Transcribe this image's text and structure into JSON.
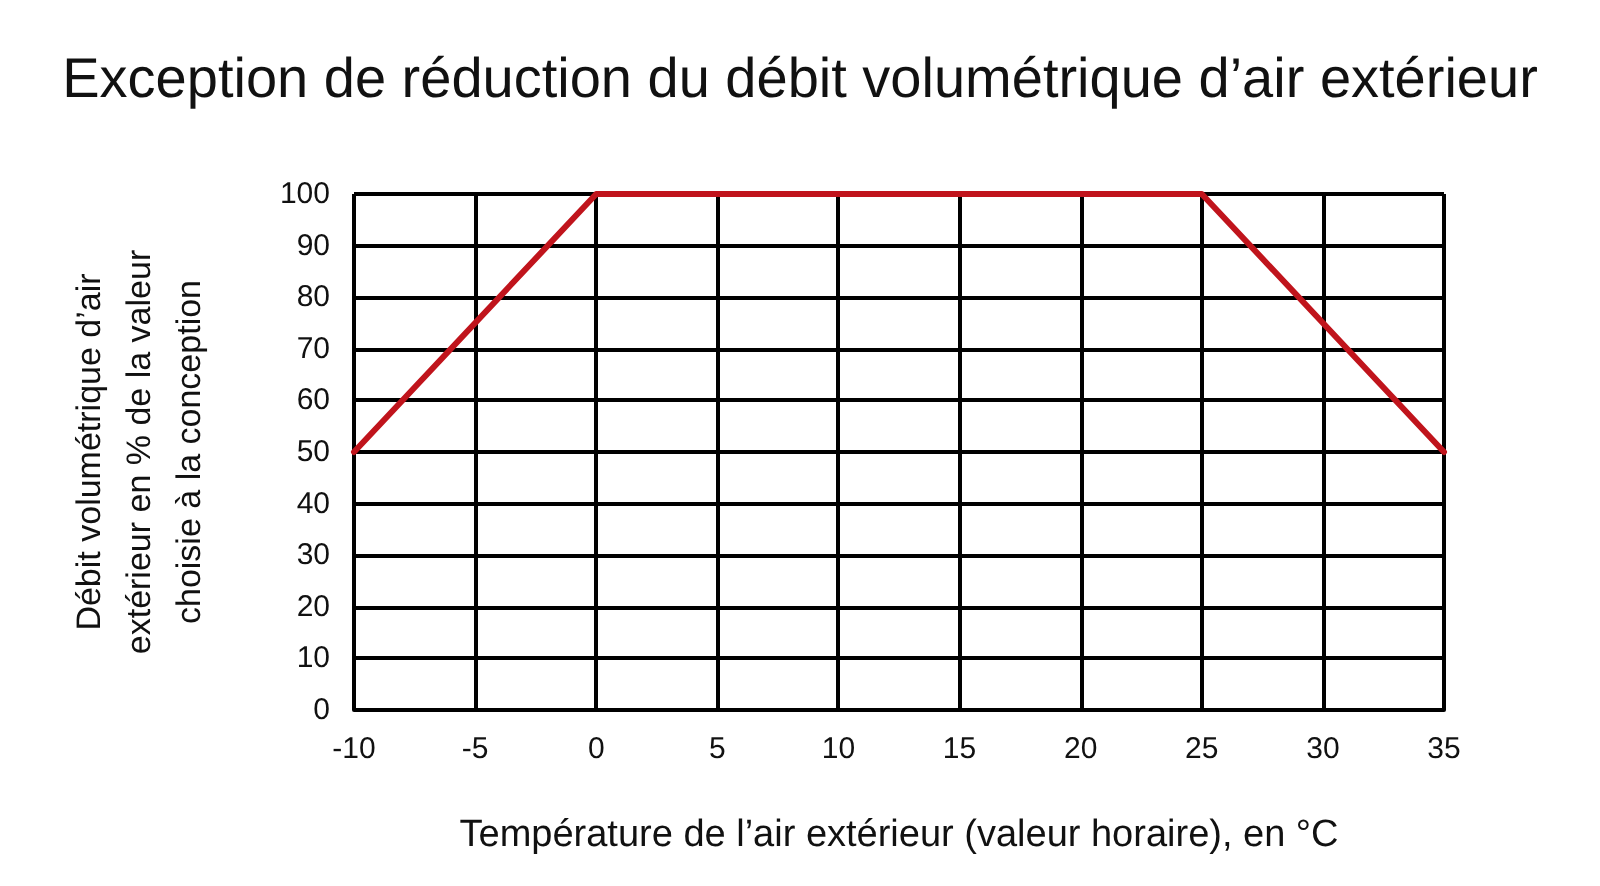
{
  "chart_data": {
    "type": "line",
    "title": "Exception de réduction du débit volumétrique d’air extérieur",
    "xlabel": "Température de l’air extérieur (valeur horaire), en °C",
    "ylabel": "Débit volumétrique d’air\nextérieur en % de la valeur\nchoisie à la conception",
    "x": [
      -10,
      0,
      25,
      35
    ],
    "values": [
      50,
      100,
      100,
      50
    ],
    "color": "#c0141c",
    "xlim": [
      -10,
      35
    ],
    "ylim": [
      0,
      100
    ],
    "xticks": [
      -10,
      -5,
      0,
      5,
      10,
      15,
      20,
      25,
      30,
      35
    ],
    "yticks": [
      0,
      10,
      20,
      30,
      40,
      50,
      60,
      70,
      80,
      90,
      100
    ],
    "grid": true,
    "marker": "none",
    "line_style": "solid"
  }
}
